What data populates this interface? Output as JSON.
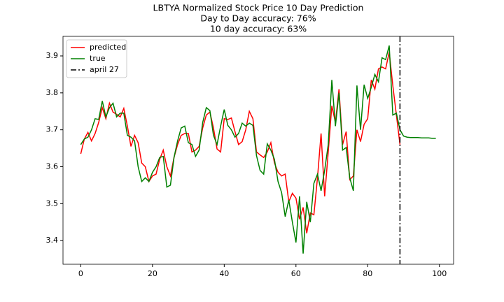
{
  "chart_data": {
    "type": "line",
    "title": "LBTYA Normalized Stock Price 10 Day Prediction",
    "subtitle": [
      "Day to Day accuracy: 76%",
      "10 day accuracy: 63%"
    ],
    "x": [
      0,
      1,
      2,
      3,
      4,
      5,
      6,
      7,
      8,
      9,
      10,
      11,
      12,
      13,
      14,
      15,
      16,
      17,
      18,
      19,
      20,
      21,
      22,
      23,
      24,
      25,
      26,
      27,
      28,
      29,
      30,
      31,
      32,
      33,
      34,
      35,
      36,
      37,
      38,
      39,
      40,
      41,
      42,
      43,
      44,
      45,
      46,
      47,
      48,
      49,
      50,
      51,
      52,
      53,
      54,
      55,
      56,
      57,
      58,
      59,
      60,
      61,
      62,
      63,
      64,
      65,
      66,
      67,
      68,
      69,
      70,
      71,
      72,
      73,
      74,
      75,
      76,
      77,
      78,
      79,
      80,
      81,
      82,
      83,
      84,
      85,
      86,
      87,
      88,
      89,
      90,
      91,
      92,
      93,
      94,
      95,
      96,
      97,
      98,
      99
    ],
    "series": [
      {
        "name": "predicted",
        "color": "#ff0000",
        "values": [
          3.635,
          3.675,
          3.693,
          3.67,
          3.69,
          3.72,
          3.76,
          3.73,
          3.772,
          3.748,
          3.742,
          3.735,
          3.758,
          3.71,
          3.655,
          3.685,
          3.665,
          3.61,
          3.6,
          3.56,
          3.575,
          3.58,
          3.62,
          3.645,
          3.6,
          3.575,
          3.625,
          3.66,
          3.685,
          3.69,
          3.69,
          3.64,
          3.645,
          3.655,
          3.705,
          3.74,
          3.748,
          3.705,
          3.648,
          3.64,
          3.73,
          3.728,
          3.732,
          3.695,
          3.66,
          3.668,
          3.7,
          3.75,
          3.73,
          3.64,
          3.632,
          3.625,
          3.64,
          3.665,
          3.61,
          3.585,
          3.575,
          3.58,
          3.505,
          3.528,
          3.515,
          3.458,
          3.49,
          3.42,
          3.475,
          3.47,
          3.57,
          3.69,
          3.52,
          3.64,
          3.765,
          3.72,
          3.81,
          3.66,
          3.695,
          3.565,
          3.575,
          3.7,
          3.668,
          3.715,
          3.73,
          3.835,
          3.81,
          3.865,
          3.87,
          3.865,
          3.91,
          3.82,
          3.74,
          3.66,
          null,
          null,
          null,
          null,
          null,
          null,
          null,
          null,
          null,
          null
        ]
      },
      {
        "name": "true",
        "color": "#008000",
        "values": [
          3.66,
          3.675,
          3.68,
          3.7,
          3.73,
          3.728,
          3.778,
          3.735,
          3.76,
          3.772,
          3.735,
          3.745,
          3.745,
          3.685,
          3.68,
          3.67,
          3.6,
          3.56,
          3.57,
          3.56,
          3.585,
          3.6,
          3.625,
          3.628,
          3.545,
          3.55,
          3.625,
          3.67,
          3.705,
          3.71,
          3.665,
          3.66,
          3.628,
          3.645,
          3.72,
          3.76,
          3.752,
          3.685,
          3.66,
          3.71,
          3.755,
          3.712,
          3.7,
          3.68,
          3.69,
          3.718,
          3.71,
          3.718,
          3.712,
          3.63,
          3.59,
          3.58,
          3.662,
          3.645,
          3.62,
          3.56,
          3.53,
          3.465,
          3.51,
          3.45,
          3.395,
          3.52,
          3.365,
          3.505,
          3.45,
          3.555,
          3.58,
          3.535,
          3.59,
          3.66,
          3.835,
          3.71,
          3.8,
          3.645,
          3.652,
          3.57,
          3.535,
          3.82,
          3.7,
          3.822,
          3.785,
          3.815,
          3.85,
          3.83,
          3.895,
          3.89,
          3.928,
          3.74,
          3.745,
          3.7,
          3.683,
          3.68,
          3.679,
          3.679,
          3.679,
          3.678,
          3.678,
          3.678,
          3.677,
          3.677
        ]
      }
    ],
    "vline": {
      "name": "april 27",
      "x": 89,
      "color": "#000000"
    },
    "xlim": [
      -4.95,
      103.95
    ],
    "xticks": [
      0,
      20,
      40,
      60,
      80,
      100
    ],
    "ylim": [
      3.336,
      3.953
    ],
    "yticks": [
      3.4,
      3.5,
      3.6,
      3.7,
      3.8,
      3.9
    ],
    "legend": "upper left",
    "grid": false
  }
}
